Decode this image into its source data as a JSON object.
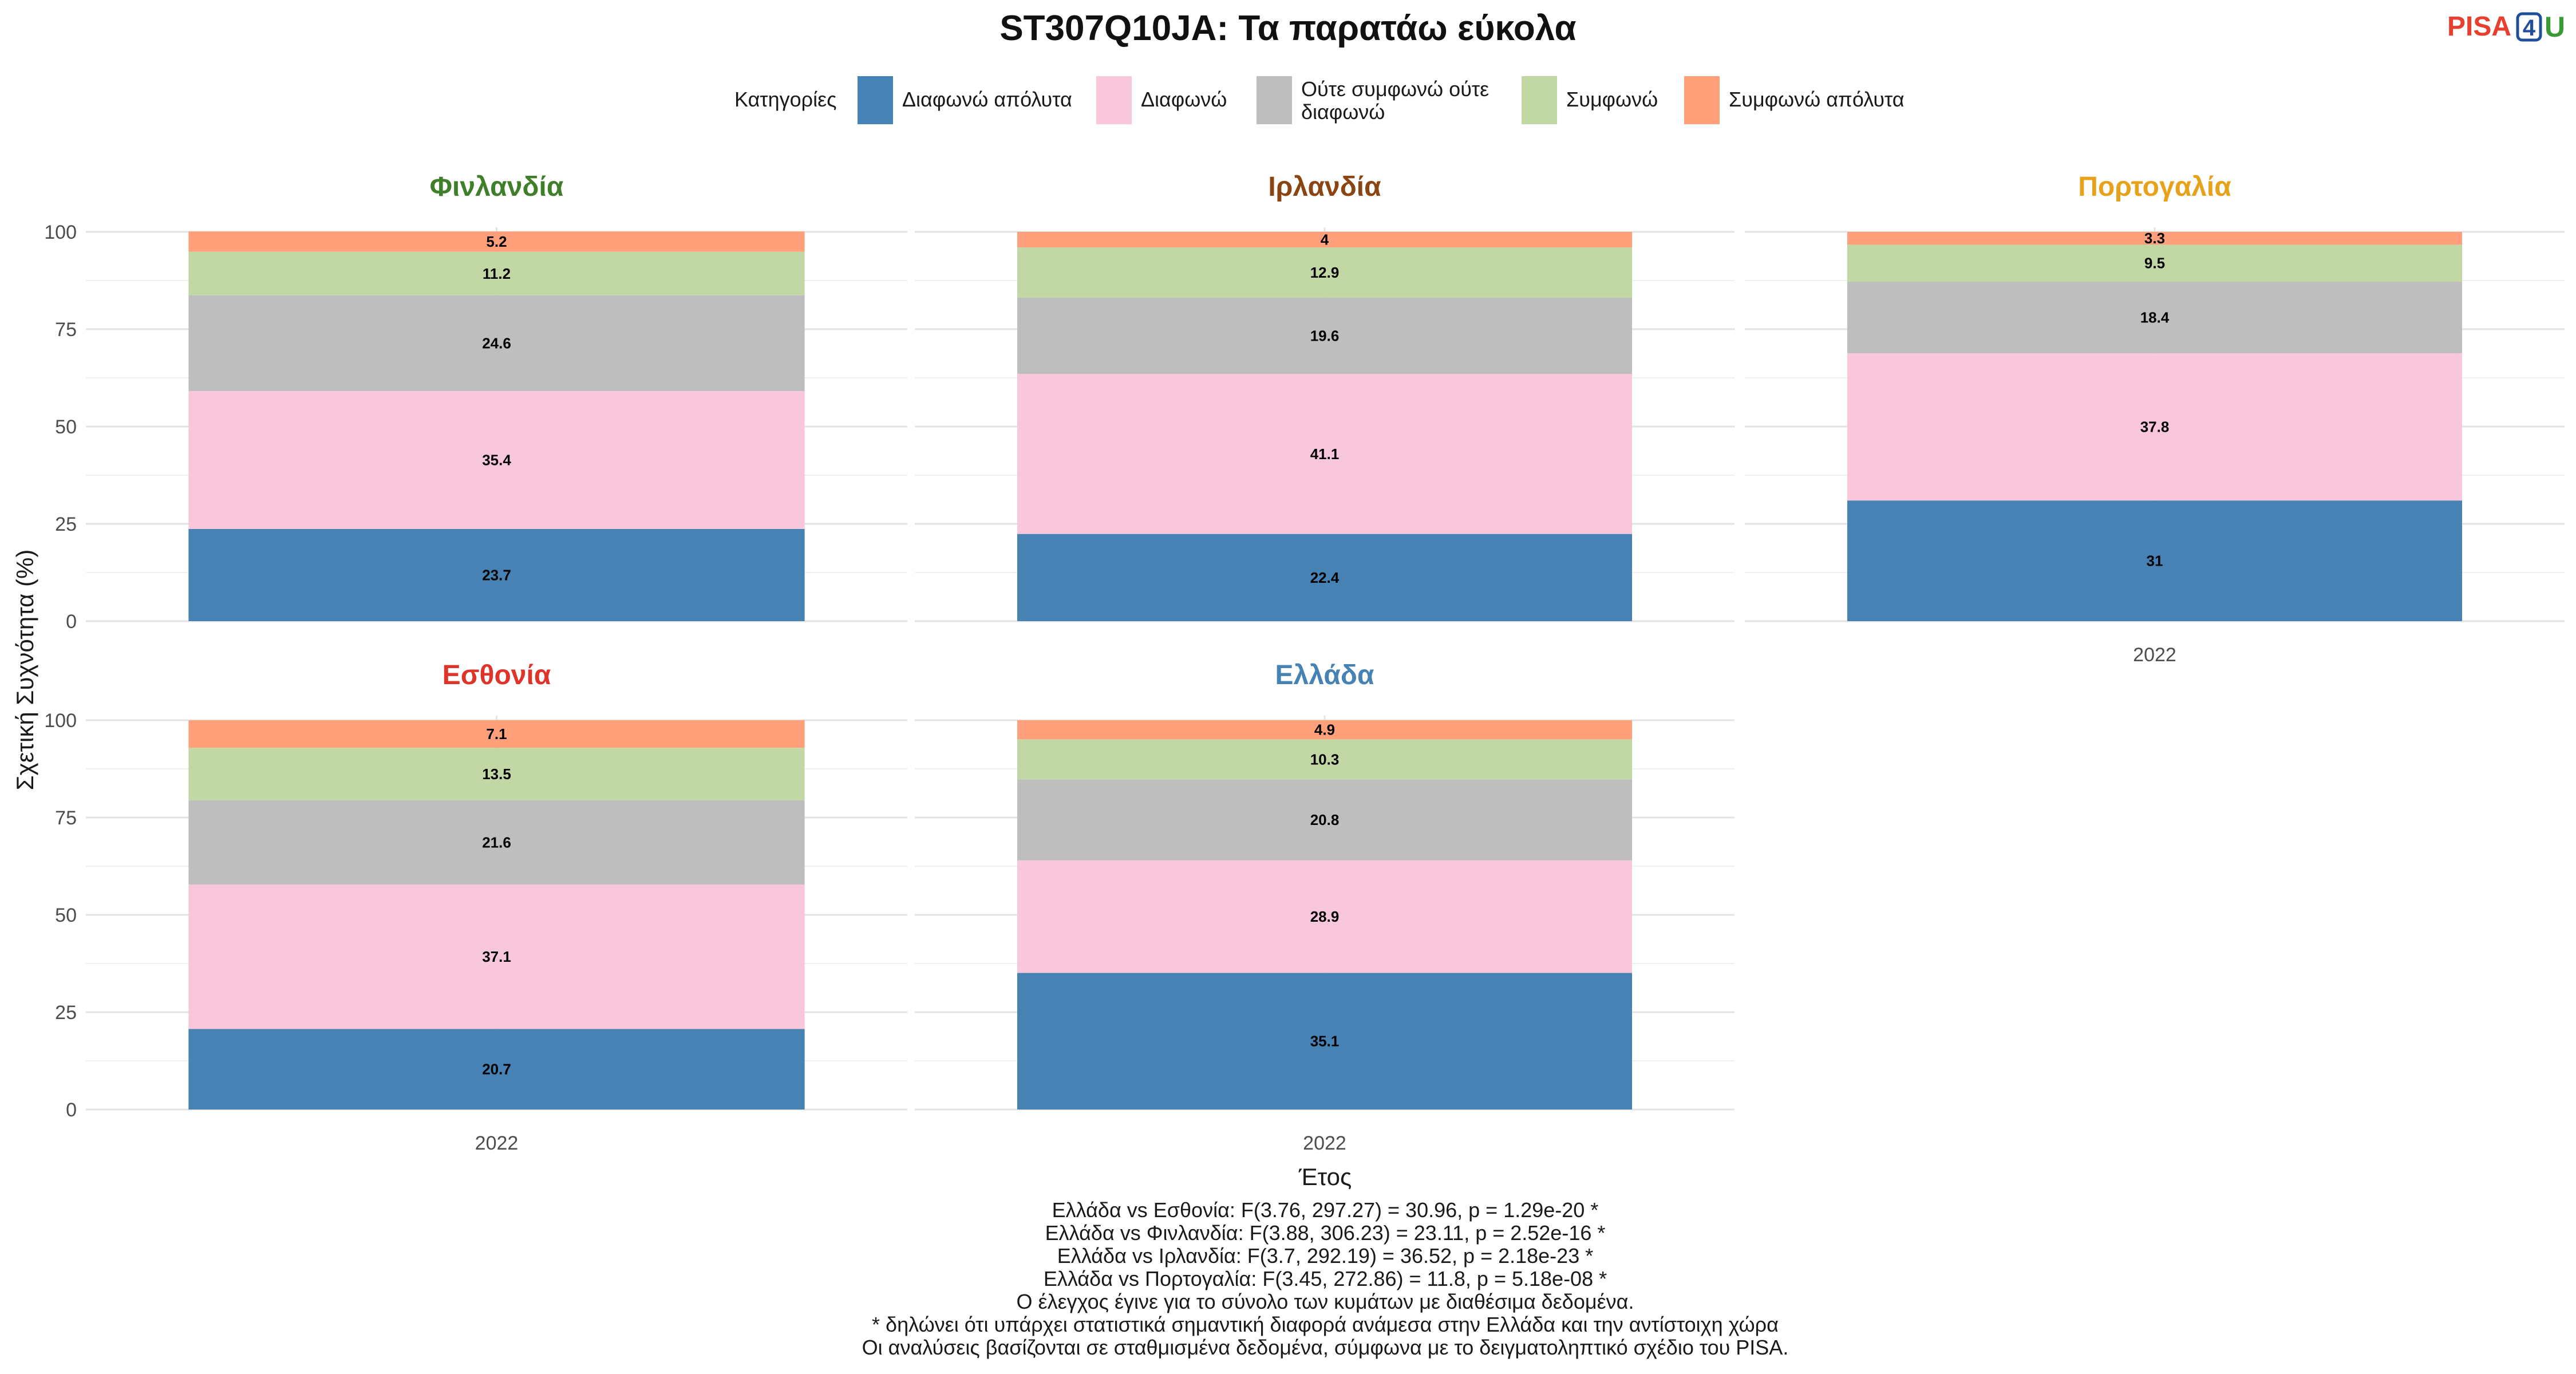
{
  "title": "ST307Q10JA: Τα παρατάω εύκολα",
  "logo": {
    "text_a": "PISA",
    "text_b": "4",
    "text_c": "U",
    "colors": [
      "#e8402e",
      "#1f4e9a",
      "#3a9a35"
    ]
  },
  "legend": {
    "title": "Κατηγορίες",
    "items": [
      {
        "label": "Διαφωνώ απόλυτα",
        "color": "#4682b4"
      },
      {
        "label": "Διαφωνώ",
        "color": "#f8c7dc"
      },
      {
        "label_line1": "Ούτε συμφωνώ ούτε",
        "label_line2": "διαφωνώ",
        "color": "#bebebe"
      },
      {
        "label": "Συμφωνώ",
        "color": "#c2d8a4"
      },
      {
        "label": "Συμφωνώ απόλυτα",
        "color": "#ffa07a"
      }
    ]
  },
  "axes": {
    "ylabel": "Σχετική Συχνότητα (%)",
    "xlabel": "Έτος"
  },
  "chart_data": {
    "type": "bar",
    "stacked": true,
    "ylim": [
      0,
      100
    ],
    "yticks": [
      0,
      25,
      50,
      75,
      100
    ],
    "grid": true,
    "legend_position": "top",
    "categories": [
      "Διαφωνώ απόλυτα",
      "Διαφωνώ",
      "Ούτε συμφωνώ ούτε διαφωνώ",
      "Συμφωνώ",
      "Συμφωνώ απόλυτα"
    ],
    "panels": [
      {
        "country": "Φινλανδία",
        "color": "#3f7f2a",
        "x": "2022",
        "values": [
          23.7,
          35.4,
          24.6,
          11.2,
          5.2
        ],
        "labels": [
          "23.7",
          "35.4",
          "24.6",
          "11.2",
          "5.2"
        ]
      },
      {
        "country": "Ιρλανδία",
        "color": "#8b4513",
        "x": "2022",
        "values": [
          22.4,
          41.1,
          19.6,
          12.9,
          4
        ],
        "labels": [
          "22.4",
          "41.1",
          "19.6",
          "12.9",
          "4"
        ]
      },
      {
        "country": "Πορτογαλία",
        "color": "#e8a21a",
        "x": "2022",
        "values": [
          31,
          37.8,
          18.4,
          9.5,
          3.3
        ],
        "labels": [
          "31",
          "37.8",
          "18.4",
          "9.5",
          "3.3"
        ]
      },
      {
        "country": "Εσθονία",
        "color": "#e0332a",
        "x": "2022",
        "values": [
          20.7,
          37.1,
          21.6,
          13.5,
          7.1
        ],
        "labels": [
          "20.7",
          "37.1",
          "21.6",
          "13.5",
          "7.1"
        ]
      },
      {
        "country": "Ελλάδα",
        "color": "#4682b4",
        "x": "2022",
        "values": [
          35.1,
          28.9,
          20.8,
          10.3,
          4.9
        ],
        "labels": [
          "35.1",
          "28.9",
          "20.8",
          "10.3",
          "4.9"
        ]
      }
    ]
  },
  "notes": [
    "Ελλάδα vs Εσθονία: F(3.76, 297.27) = 30.96, p = 1.29e-20 *",
    "Ελλάδα vs Φινλανδία: F(3.88, 306.23) = 23.11, p = 2.52e-16 *",
    "Ελλάδα vs Ιρλανδία: F(3.7, 292.19) = 36.52, p = 2.18e-23 *",
    "Ελλάδα vs Πορτογαλία: F(3.45, 272.86) = 11.8, p = 5.18e-08 *",
    "Ο έλεγχος έγινε για το σύνολο των κυμάτων με διαθέσιμα δεδομένα.",
    "* δηλώνει ότι υπάρχει στατιστικά σημαντική διαφορά ανάμεσα στην Ελλάδα και την αντίστοιχη χώρα",
    "Οι αναλύσεις βασίζονται σε σταθμισμένα δεδομένα, σύμφωνα με το δειγματοληπτικό σχέδιο του PISA."
  ]
}
